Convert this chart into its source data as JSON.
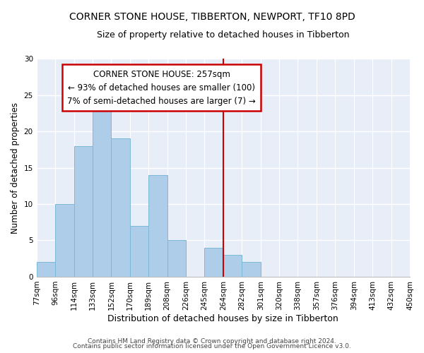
{
  "title": "CORNER STONE HOUSE, TIBBERTON, NEWPORT, TF10 8PD",
  "subtitle": "Size of property relative to detached houses in Tibberton",
  "xlabel": "Distribution of detached houses by size in Tibberton",
  "ylabel": "Number of detached properties",
  "bar_labels": [
    "77sqm",
    "96sqm",
    "114sqm",
    "133sqm",
    "152sqm",
    "170sqm",
    "189sqm",
    "208sqm",
    "226sqm",
    "245sqm",
    "264sqm",
    "282sqm",
    "301sqm",
    "320sqm",
    "338sqm",
    "357sqm",
    "376sqm",
    "394sqm",
    "413sqm",
    "432sqm",
    "450sqm"
  ],
  "bar_values": [
    2,
    10,
    18,
    23,
    19,
    7,
    14,
    5,
    0,
    4,
    3,
    2,
    0,
    0,
    0,
    0,
    0,
    0,
    0,
    0
  ],
  "bar_color": "#aecde8",
  "bar_edge_color": "#7db8d8",
  "vline_x_data": 9.5,
  "vline_color": "#cc0000",
  "annotation_title": "CORNER STONE HOUSE: 257sqm",
  "annotation_line1": "← 93% of detached houses are smaller (100)",
  "annotation_line2": "7% of semi-detached houses are larger (7) →",
  "annotation_box_facecolor": "#ffffff",
  "annotation_border_color": "#cc0000",
  "ylim": [
    0,
    30
  ],
  "yticks": [
    0,
    5,
    10,
    15,
    20,
    25,
    30
  ],
  "footer1": "Contains HM Land Registry data © Crown copyright and database right 2024.",
  "footer2": "Contains public sector information licensed under the Open Government Licence v3.0.",
  "background_color": "#ffffff",
  "plot_background": "#e8eef8",
  "title_fontsize": 10,
  "subtitle_fontsize": 9,
  "annotation_fontsize": 8.5,
  "axis_label_fontsize": 9,
  "tick_fontsize": 7.5,
  "footer_fontsize": 6.5,
  "ylabel_fontsize": 8.5
}
